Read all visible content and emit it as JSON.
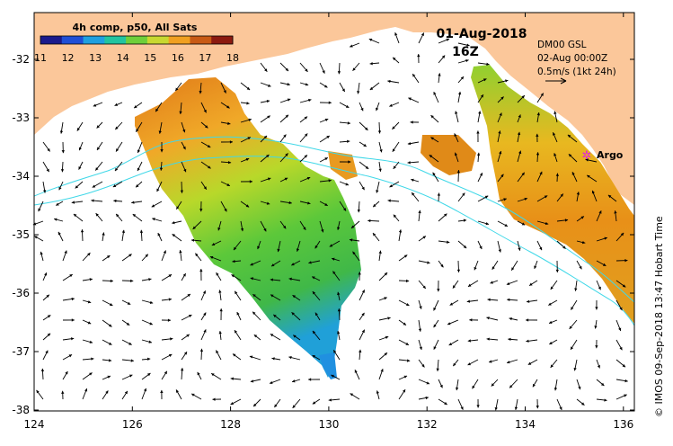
{
  "colorbar": {
    "title": "4h comp, p50, All Sats",
    "ticks": [
      "11",
      "12",
      "13",
      "14",
      "15",
      "16",
      "17",
      "18"
    ],
    "colors": [
      "#1a1a8c",
      "#1f4fd6",
      "#1fa0e0",
      "#22c4a0",
      "#6fcf3a",
      "#c8d830",
      "#f0a020",
      "#c85a14",
      "#8c1a10"
    ]
  },
  "header": {
    "date": "01-Aug-2018",
    "hour": "16Z"
  },
  "info": {
    "line1": "DM00 GSL",
    "line2": "02-Aug 00:00Z",
    "line3": "0.5m/s (1kt 24h)"
  },
  "argo": {
    "label": "Argo",
    "color": "#e020e0"
  },
  "credit": "© IMOS 09-Sep-2018 13:47 Hobart Time",
  "axes": {
    "xticks": [
      "124",
      "126",
      "128",
      "130",
      "132",
      "134",
      "136"
    ],
    "yticks": [
      "-32",
      "-33",
      "-34",
      "-35",
      "-36",
      "-37",
      "-38"
    ]
  },
  "colors": {
    "land": "#fbc79a",
    "contour": "#40d8e8"
  }
}
